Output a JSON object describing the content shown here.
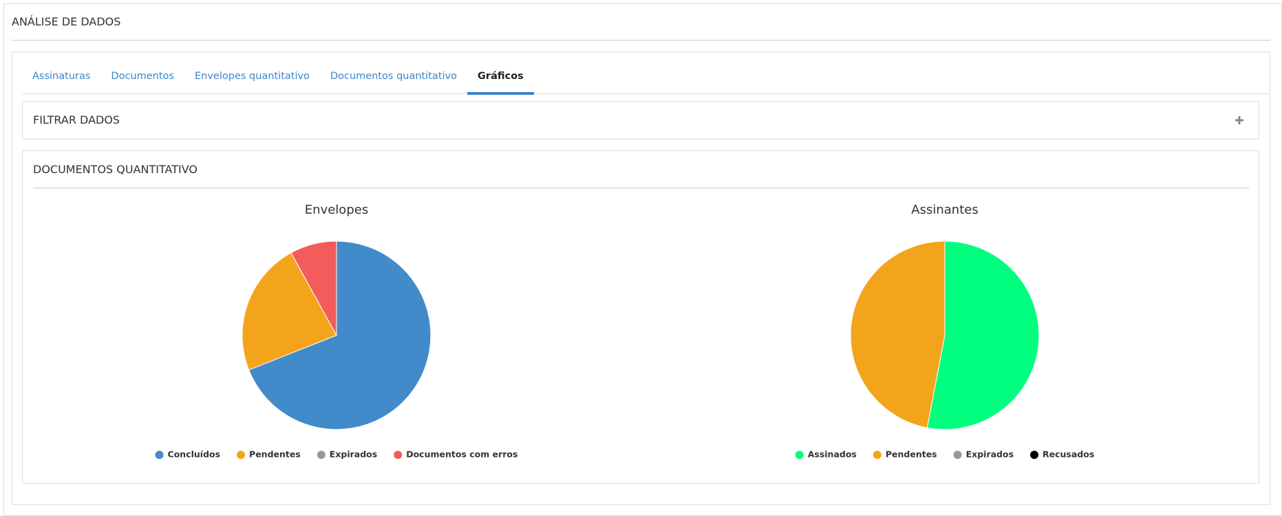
{
  "header": {
    "title": "ANÁLISE DE DADOS"
  },
  "tabs": [
    "Assinaturas",
    "Documentos",
    "Envelopes quantitativo",
    "Documentos quantitativo",
    "Gráficos"
  ],
  "filter": {
    "title": "FILTRAR DADOS"
  },
  "section": {
    "title": "DOCUMENTOS QUANTITATIVO"
  },
  "chart_data": [
    {
      "type": "pie",
      "title": "Envelopes",
      "categories": [
        "Concluídos",
        "Pendentes",
        "Expirados",
        "Documentos com erros"
      ],
      "values": [
        69,
        23,
        0,
        8
      ],
      "colors": [
        "#428bca",
        "#f4a41b",
        "#999999",
        "#f45b5b"
      ]
    },
    {
      "type": "pie",
      "title": "Assinantes",
      "categories": [
        "Assinados",
        "Pendentes",
        "Expirados",
        "Recusados"
      ],
      "values": [
        53,
        47,
        0,
        0
      ],
      "colors": [
        "#00ff7f",
        "#f4a41b",
        "#999999",
        "#000000"
      ]
    }
  ]
}
